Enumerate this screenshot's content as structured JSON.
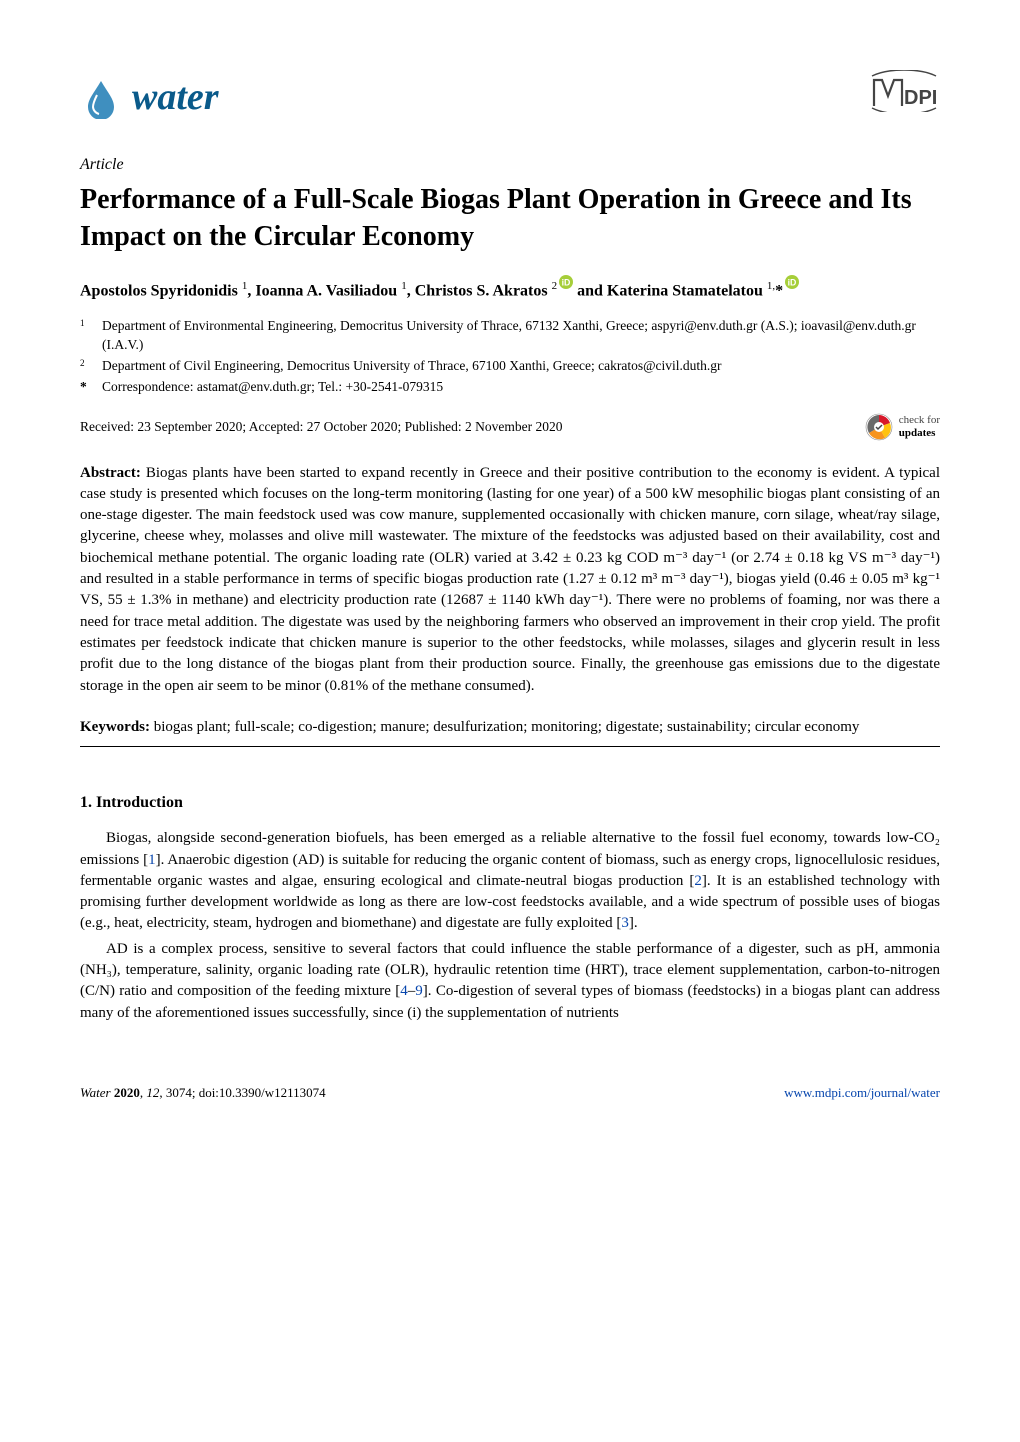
{
  "journal": {
    "name": "water",
    "name_color": "#0a5a8a",
    "drop_color": "#3f8fbf",
    "publisher": "MDPI"
  },
  "article_type": "Article",
  "title": "Performance of a Full-Scale Biogas Plant Operation in Greece and Its Impact on the Circular Economy",
  "authors_html": "Apostolos Spyridonidis <sup>1</sup>, Ioanna A. Vasiliadou <sup>1</sup>, Christos S. Akratos <sup>2</sup><span class=\"orcid\"><svg viewBox=\"0 0 16 16\"><circle cx=\"8\" cy=\"8\" r=\"8\" fill=\"#a6ce39\"/><text x=\"8\" y=\"12\" text-anchor=\"middle\" font-size=\"10\" fill=\"#fff\" font-family=\"Arial\">iD</text></svg></span> and Katerina Stamatelatou <sup>1,</sup>*<span class=\"orcid\"><svg viewBox=\"0 0 16 16\"><circle cx=\"8\" cy=\"8\" r=\"8\" fill=\"#a6ce39\"/><text x=\"8\" y=\"12\" text-anchor=\"middle\" font-size=\"10\" fill=\"#fff\" font-family=\"Arial\">iD</text></svg></span>",
  "affiliations": [
    {
      "num": "1",
      "text": "Department of Environmental Engineering, Democritus University of Thrace, 67132 Xanthi, Greece; aspyri@env.duth.gr (A.S.); ioavasil@env.duth.gr (I.A.V.)"
    },
    {
      "num": "2",
      "text": "Department of Civil Engineering, Democritus University of Thrace, 67100 Xanthi, Greece; cakratos@civil.duth.gr"
    }
  ],
  "correspondence": {
    "marker": "*",
    "text": "Correspondence: astamat@env.duth.gr; Tel.: +30-2541-079315"
  },
  "dates": "Received: 23 September 2020; Accepted: 27 October 2020; Published: 2 November 2020",
  "updates_badge": {
    "line1": "check for",
    "line2": "updates"
  },
  "abstract_label": "Abstract:",
  "abstract_body": " Biogas plants have been started to expand recently in Greece and their positive contribution to the economy is evident. A typical case study is presented which focuses on the long-term monitoring (lasting for one year) of a 500 kW mesophilic biogas plant consisting of an one-stage digester. The main feedstock used was cow manure, supplemented occasionally with chicken manure, corn silage, wheat/ray silage, glycerine, cheese whey, molasses and olive mill wastewater. The mixture of the feedstocks was adjusted based on their availability, cost and biochemical methane potential. The organic loading rate (OLR) varied at 3.42 ± 0.23 kg COD m⁻³ day⁻¹ (or 2.74 ± 0.18 kg VS m⁻³ day⁻¹) and resulted in a stable performance in terms of specific biogas production rate (1.27 ± 0.12 m³ m⁻³ day⁻¹), biogas yield (0.46 ± 0.05 m³ kg⁻¹ VS, 55 ± 1.3% in methane) and electricity production rate (12687 ± 1140 kWh day⁻¹). There were no problems of foaming, nor was there a need for trace metal addition. The digestate was used by the neighboring farmers who observed an improvement in their crop yield. The profit estimates per feedstock indicate that chicken manure is superior to the other feedstocks, while molasses, silages and glycerin result in less profit due to the long distance of the biogas plant from their production source. Finally, the greenhouse gas emissions due to the digestate storage in the open air seem to be minor (0.81% of the methane consumed).",
  "keywords_label": "Keywords:",
  "keywords_body": " biogas plant; full-scale; co-digestion; manure; desulfurization; monitoring; digestate; sustainability; circular economy",
  "section1": {
    "heading": "1. Introduction"
  },
  "para1_html": "Biogas, alongside second-generation biofuels, has been emerged as a reliable alternative to the fossil fuel economy, towards low-CO₂ emissions [<span class=\"ref-link\">1</span>]. Anaerobic digestion (AD) is suitable for reducing the organic content of biomass, such as energy crops, lignocellulosic residues, fermentable organic wastes and algae, ensuring ecological and climate-neutral biogas production [<span class=\"ref-link\">2</span>]. It is an established technology with promising further development worldwide as long as there are low-cost feedstocks available, and a wide spectrum of possible uses of biogas (e.g., heat, electricity, steam, hydrogen and biomethane) and digestate are fully exploited [<span class=\"ref-link\">3</span>].",
  "para2_html": "AD is a complex process, sensitive to several factors that could influence the stable performance of a digester, such as pH, ammonia (NH₃), temperature, salinity, organic loading rate (OLR), hydraulic retention time (HRT), trace element supplementation, carbon-to-nitrogen (C/N) ratio and composition of the feeding mixture [<span class=\"ref-link\">4</span>–<span class=\"ref-link\">9</span>]. Co-digestion of several types of biomass (feedstocks) in a biogas plant can address many of the aforementioned issues successfully, since (i) the supplementation of nutrients",
  "footer": {
    "left_italic": "Water ",
    "left_rest": "2020, 12, 3074; doi:10.3390/w12113074",
    "left_bold": "2020",
    "right": "www.mdpi.com/journal/water"
  },
  "colors": {
    "orcid_green": "#a6ce39",
    "link_blue": "#0645ad",
    "updates_orange": "#f7941d",
    "updates_red": "#d7182a",
    "updates_yellow": "#ffc20e"
  }
}
